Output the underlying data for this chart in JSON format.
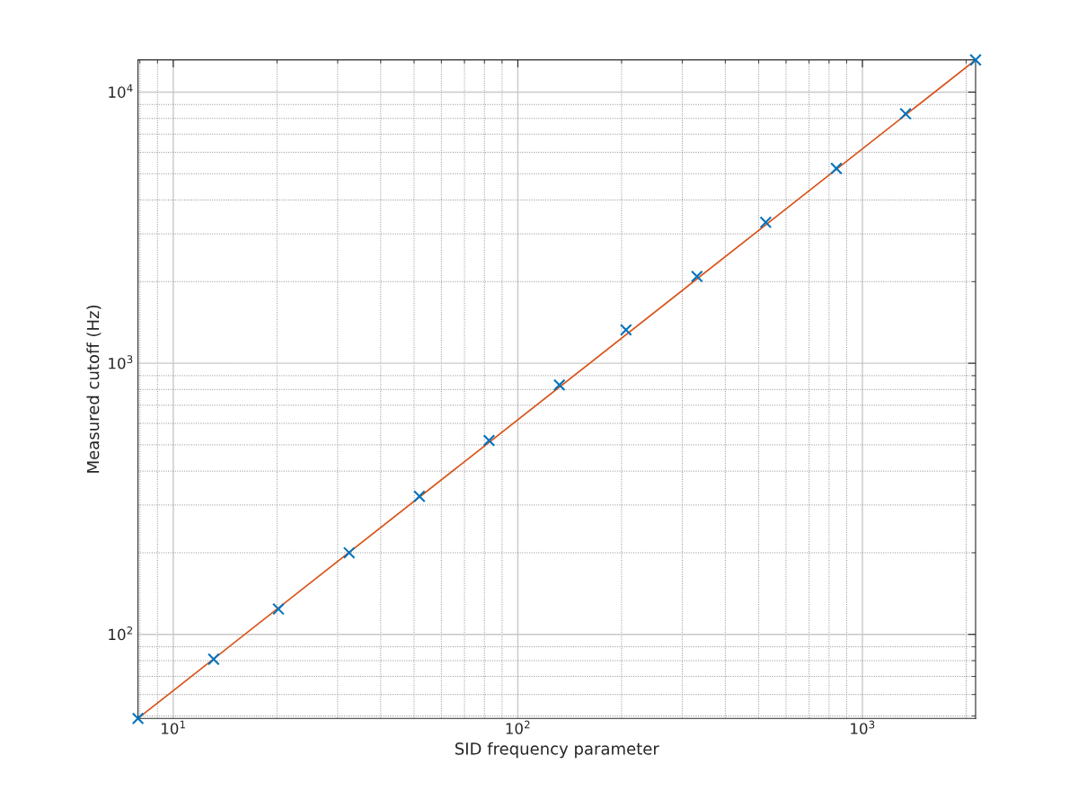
{
  "chart_data": {
    "type": "scatter",
    "xlabel": "SID frequency parameter",
    "ylabel": "Measured cutoff (Hz)",
    "log": "xy",
    "grid": true,
    "legend": false,
    "xlim": [
      7.9,
      2130
    ],
    "ylim": [
      49,
      13150
    ],
    "xticks": [
      {
        "value": 10,
        "label": "10$^{1}$"
      },
      {
        "value": 100,
        "label": "10$^{2}$"
      },
      {
        "value": 1000,
        "label": "10$^{3}$"
      }
    ],
    "yticks": [
      {
        "value": 100,
        "label": "10$^{2}$"
      },
      {
        "value": 1000,
        "label": "10$^{3}$"
      },
      {
        "value": 10000,
        "label": "10$^{4}$"
      }
    ],
    "series": [
      {
        "type": "line",
        "color": "#d95319",
        "marker": "none",
        "line_style": "solid",
        "x": [
          7.9,
          2130
        ],
        "values": [
          49,
          13150
        ]
      },
      {
        "color": "#0072bd",
        "marker": "cross",
        "x": [
          7.9,
          13.1,
          20.2,
          32.4,
          51.8,
          82.5,
          132,
          206,
          331,
          524,
          840,
          1334,
          2130
        ],
        "values": [
          49,
          81,
          124,
          200,
          323,
          519,
          832,
          1328,
          2090,
          3310,
          5230,
          8320,
          13150
        ]
      }
    ]
  }
}
